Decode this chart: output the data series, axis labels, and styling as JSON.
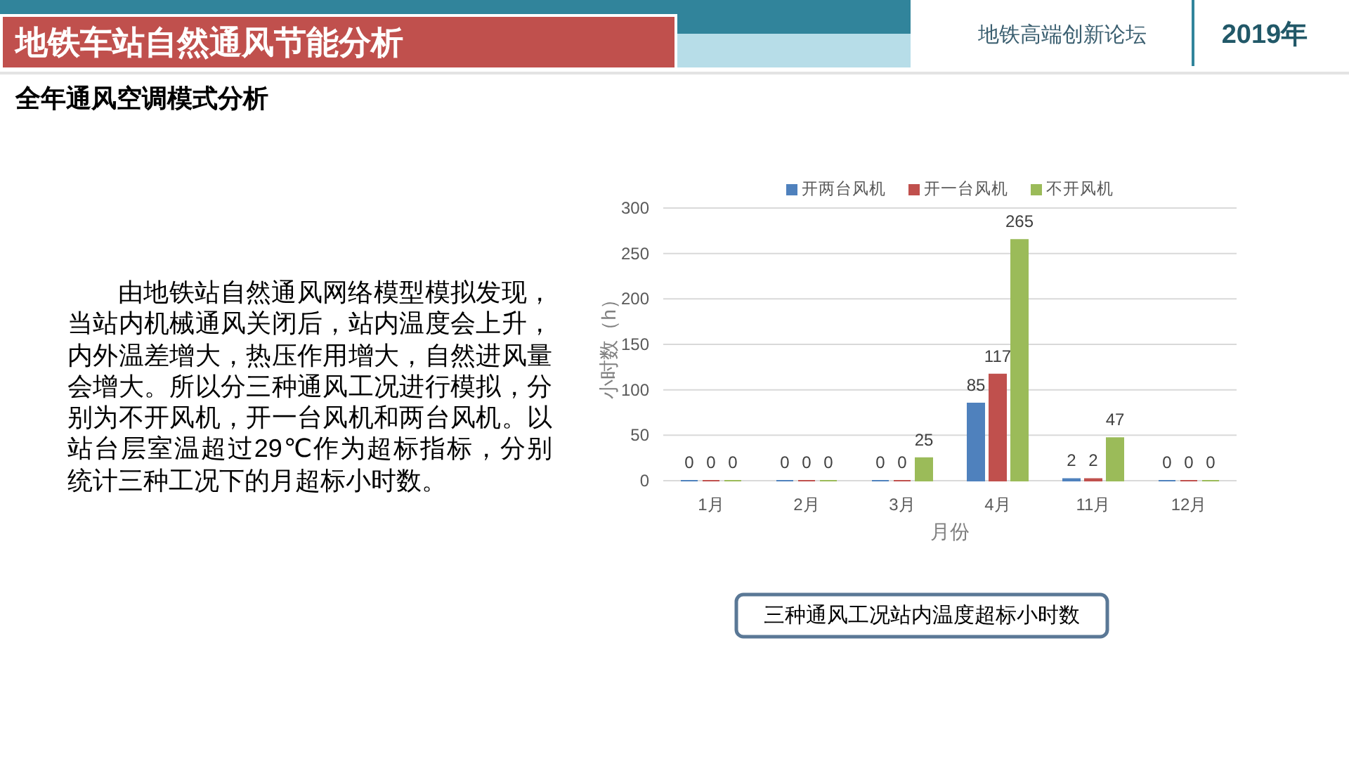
{
  "chart_data": {
    "type": "bar",
    "title": "地铁车站自然通风节能分析",
    "subtitle": "全年通风空调模式分析",
    "annotations": [
      "地铁高端创新论坛",
      "2019年",
      "由地铁站自然通风网络模型模拟发现，当站内机械通风关闭后，站内温度会上升，内外温差增大，热压作用增大，自然进风量会增大。所以分三种通风工况进行模拟，分别为不开风机，开一台风机和两台风机。以站台层室温超过29℃作为超标指标，分别统计三种工况下的月超标小时数。",
      "三种通风工况站内温度超标小时数"
    ],
    "xlabel": "月份",
    "ylabel": "小时数（h）",
    "categories": [
      "1月",
      "2月",
      "3月",
      "4月",
      "11月",
      "12月"
    ],
    "series": [
      {
        "name": "开两台风机",
        "color": "#4f81bd",
        "values": [
          0,
          0,
          0,
          85,
          2,
          0
        ]
      },
      {
        "name": "开一台风机",
        "color": "#c0504d",
        "values": [
          0,
          0,
          0,
          117,
          2,
          0
        ]
      },
      {
        "name": "不开风机",
        "color": "#9bbb59",
        "values": [
          0,
          0,
          25,
          265,
          47,
          0
        ]
      }
    ],
    "ylim": [
      0,
      300
    ],
    "yticks": [
      0,
      50,
      100,
      150,
      200,
      250,
      300
    ],
    "grid": "y",
    "legend": "top",
    "data_labels": true
  }
}
